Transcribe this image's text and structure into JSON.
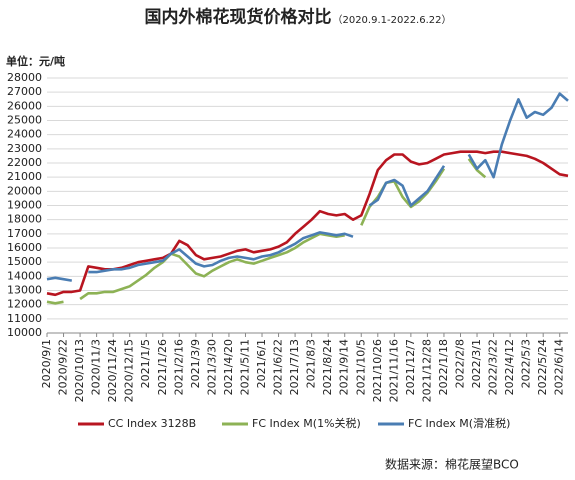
{
  "chart_data": {
    "type": "line",
    "title": "国内外棉花现货价格对比",
    "subtitle": "（2020.9.1-2022.6.22）",
    "unit_label": "单位：元/吨",
    "source": "数据来源：棉花展望BCO",
    "categories": [
      "2020/9/1",
      null,
      "2020/9/22",
      null,
      "2020/10/13",
      null,
      "2020/11/3",
      null,
      "2020/11/24",
      null,
      "2020/12/15",
      null,
      "2021/1/5",
      null,
      "2021/1/26",
      null,
      "2021/2/16",
      null,
      "2021/3/9",
      null,
      "2021/3/30",
      null,
      "2021/4/20",
      null,
      "2021/5/11",
      null,
      "2021/6/1",
      null,
      "2021/6/22",
      null,
      "2021/7/13",
      null,
      "2021/8/3",
      null,
      "2021/8/24",
      null,
      "2021/9/14",
      null,
      "2021/10/5",
      null,
      "2021/10/26",
      null,
      "2021/11/16",
      null,
      "2021/12/7",
      null,
      "2021/12/28",
      null,
      "2022/1/18",
      null,
      "2022/2/8",
      null,
      "2022/3/1",
      null,
      "2022/3/22",
      null,
      "2022/4/12",
      null,
      "2022/5/3",
      null,
      "2022/5/24",
      null,
      "2022/6/14",
      null
    ],
    "ylim": [
      10000,
      28000
    ],
    "yticks": [
      10000,
      11000,
      12000,
      13000,
      14000,
      15000,
      16000,
      17000,
      18000,
      19000,
      20000,
      21000,
      22000,
      23000,
      24000,
      25000,
      26000,
      27000,
      28000
    ],
    "grid": true,
    "series": [
      {
        "name": "CC Index 3128B",
        "color": "#b81520",
        "values": [
          12800,
          12700,
          12900,
          12900,
          13000,
          14700,
          14600,
          14500,
          14500,
          14600,
          14800,
          15000,
          15100,
          15200,
          15300,
          15600,
          16500,
          16200,
          15500,
          15200,
          15300,
          15400,
          15600,
          15800,
          15900,
          15700,
          15800,
          15900,
          16100,
          16400,
          17000,
          17500,
          18000,
          18600,
          18400,
          18300,
          18400,
          18000,
          18300,
          19800,
          21500,
          22200,
          22600,
          22600,
          22100,
          21900,
          22000,
          22300,
          22600,
          22700,
          22800,
          22800,
          22800,
          22700,
          22800,
          22800,
          22700,
          22600,
          22500,
          22300,
          22000,
          21600,
          21200,
          21100
        ]
      },
      {
        "name": "FC Index M(1%关税)",
        "color": "#8db255",
        "values": [
          12200,
          12100,
          12200,
          null,
          12400,
          12800,
          12800,
          12900,
          12900,
          13100,
          13300,
          13700,
          14100,
          14600,
          15000,
          15600,
          15400,
          14800,
          14200,
          14000,
          14400,
          14700,
          15000,
          15200,
          15000,
          14900,
          15100,
          15300,
          15500,
          15700,
          16000,
          16400,
          16700,
          17000,
          16900,
          16800,
          16900,
          null,
          17600,
          18900,
          19600,
          20600,
          20700,
          19600,
          18900,
          19300,
          19900,
          20700,
          21600,
          null,
          null,
          22300,
          21500,
          21000,
          null,
          null,
          null,
          null,
          null,
          null,
          null,
          null,
          null,
          null
        ]
      },
      {
        "name": "FC Index M(滑准税)",
        "color": "#4a7db3",
        "values": [
          13800,
          13900,
          13800,
          13700,
          null,
          14300,
          14300,
          14400,
          14500,
          14500,
          14600,
          14800,
          14900,
          15000,
          15100,
          15600,
          15900,
          15400,
          14900,
          14700,
          14800,
          15100,
          15300,
          15400,
          15300,
          15200,
          15400,
          15500,
          15700,
          16000,
          16300,
          16700,
          16900,
          17100,
          17000,
          16900,
          17000,
          16800,
          null,
          19000,
          19400,
          20600,
          20800,
          20400,
          19000,
          19500,
          20000,
          20900,
          21800,
          null,
          null,
          22600,
          21600,
          22200,
          21000,
          23300,
          25000,
          26500,
          25200,
          25600,
          25400,
          25900,
          26900,
          26400
        ]
      }
    ]
  }
}
